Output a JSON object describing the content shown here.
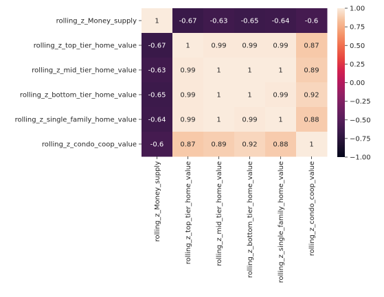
{
  "chart_data": {
    "type": "heatmap",
    "title": "",
    "row_labels": [
      "rolling_z_Money_supply",
      "rolling_z_top_tier_home_value",
      "rolling_z_mid_tier_home_value",
      "rolling_z_bottom_tier_home_value",
      "rolling_z_single_family_home_value",
      "rolling_z_condo_coop_value"
    ],
    "col_labels": [
      "rolling_z_Money_supply",
      "rolling_z_top_tier_home_value",
      "rolling_z_mid_tier_home_value",
      "rolling_z_bottom_tier_home_value",
      "rolling_z_single_family_home_value",
      "rolling_z_condo_coop_value"
    ],
    "values": [
      [
        1,
        -0.67,
        -0.63,
        -0.65,
        -0.64,
        -0.6
      ],
      [
        -0.67,
        1,
        0.99,
        0.99,
        0.99,
        0.87
      ],
      [
        -0.63,
        0.99,
        1,
        1,
        1,
        0.89
      ],
      [
        -0.65,
        0.99,
        1,
        1,
        0.99,
        0.92
      ],
      [
        -0.64,
        0.99,
        1,
        0.99,
        1,
        0.88
      ],
      [
        -0.6,
        0.87,
        0.89,
        0.92,
        0.88,
        1
      ]
    ],
    "annotations": [
      [
        "1",
        "-0.67",
        "-0.63",
        "-0.65",
        "-0.64",
        "-0.6"
      ],
      [
        "-0.67",
        "1",
        "0.99",
        "0.99",
        "0.99",
        "0.87"
      ],
      [
        "-0.63",
        "0.99",
        "1",
        "1",
        "1",
        "0.89"
      ],
      [
        "-0.65",
        "0.99",
        "1",
        "1",
        "0.99",
        "0.92"
      ],
      [
        "-0.64",
        "0.99",
        "1",
        "0.99",
        "1",
        "0.88"
      ],
      [
        "-0.6",
        "0.87",
        "0.89",
        "0.92",
        "0.88",
        "1"
      ]
    ],
    "vmin": -1,
    "vmax": 1,
    "colormap": "rocket",
    "colorbar": {
      "ticks": [
        1,
        0.75,
        0.5,
        0.25,
        0,
        -0.25,
        -0.5,
        -0.75,
        -1
      ],
      "tick_labels": [
        "1.00",
        "0.75",
        "0.50",
        "0.25",
        "0.00",
        "−0.25",
        "−0.50",
        "−0.75",
        "−1.00"
      ]
    },
    "text_color_dark": "#262626",
    "text_color_light": "#ffffff"
  }
}
